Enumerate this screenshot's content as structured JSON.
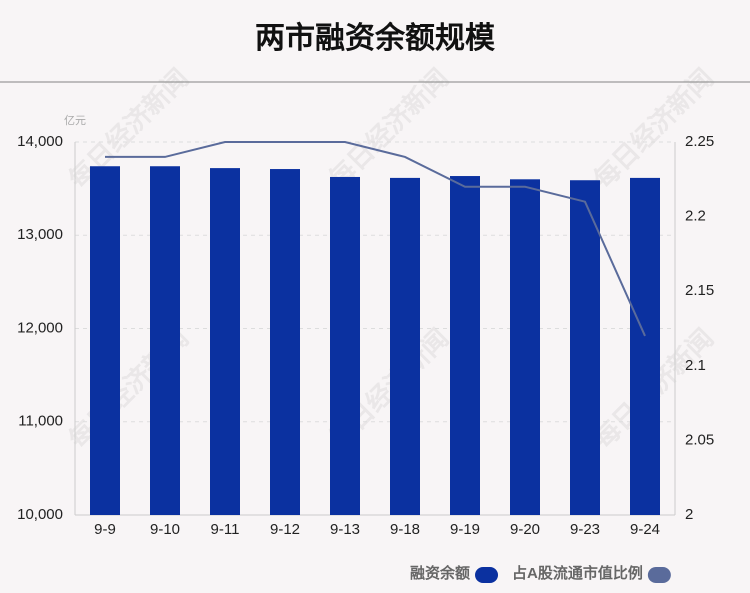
{
  "chart_data": {
    "type": "bar_line",
    "title": "两市融资余额规模",
    "unit_label": "亿元",
    "watermark": "每日经济新闻",
    "categories": [
      "9-9",
      "9-10",
      "9-11",
      "9-12",
      "9-13",
      "9-18",
      "9-19",
      "9-20",
      "9-23",
      "9-24"
    ],
    "series": [
      {
        "name": "融资余额",
        "type": "bar",
        "color": "#0b31a0",
        "values": [
          13740,
          13740,
          13720,
          13710,
          13625,
          13615,
          13635,
          13600,
          13590,
          13615
        ]
      },
      {
        "name": "占A股流通市值比例",
        "type": "line",
        "axis": "y2",
        "color": "#5a6b9b",
        "values": [
          2.24,
          2.24,
          2.25,
          2.25,
          2.25,
          2.24,
          2.22,
          2.22,
          2.21,
          2.12
        ]
      }
    ],
    "ylim": [
      10000,
      14000
    ],
    "yticks": [
      {
        "value": 10000,
        "label": "10,000"
      },
      {
        "value": 11000,
        "label": "11,000"
      },
      {
        "value": 12000,
        "label": "12,000"
      },
      {
        "value": 13000,
        "label": "13,000"
      },
      {
        "value": 14000,
        "label": "14,000"
      }
    ],
    "y2lim": [
      2,
      2.25
    ],
    "y2ticks": [
      2,
      2.05,
      2.1,
      2.15,
      2.2,
      2.25
    ],
    "grid": true
  }
}
